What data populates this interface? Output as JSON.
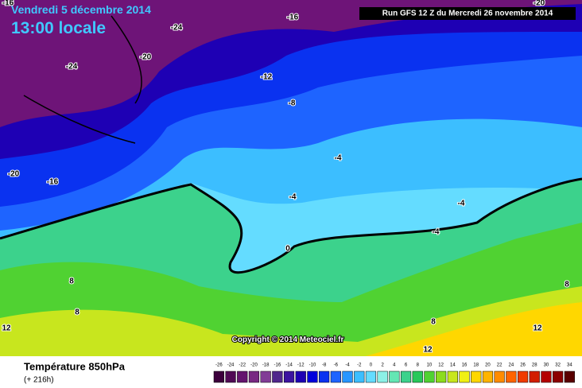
{
  "header": {
    "date": "Vendredi 5 décembre 2014",
    "time": "13:00 locale",
    "run": "Run GFS 12 Z du Mercredi 26 novembre 2014"
  },
  "copyright": "Copyright © 2014 Meteociel.fr",
  "legend": {
    "title": "Température 850hPa",
    "lead": "(+ 216h)",
    "labels": [
      -26,
      -24,
      -22,
      -20,
      -18,
      -16,
      -14,
      -12,
      -10,
      -8,
      -6,
      -4,
      -2,
      0,
      2,
      4,
      6,
      8,
      10,
      12,
      14,
      16,
      18,
      20,
      22,
      24,
      26,
      28,
      30,
      32,
      34
    ],
    "colors": [
      "#3c003c",
      "#500a55",
      "#64146e",
      "#782882",
      "#823c96",
      "#50288c",
      "#3c14a0",
      "#1e00b4",
      "#0000dc",
      "#0a32f0",
      "#1e64ff",
      "#2896ff",
      "#3cbeff",
      "#64dcff",
      "#8cf0e6",
      "#64e6b4",
      "#3cd28c",
      "#28c85a",
      "#50d232",
      "#8cdc1e",
      "#c8e61e",
      "#f0f014",
      "#ffd700",
      "#ffb400",
      "#ff8c00",
      "#ff6400",
      "#f03c00",
      "#d21e00",
      "#b40000",
      "#8c0000",
      "#5a0000"
    ]
  },
  "contour_labels": [
    "-16",
    "-24",
    "-24",
    "-20",
    "-16",
    "-12",
    "-8",
    "-20",
    "-20",
    "-16",
    "-4",
    "-4",
    "-4",
    "-4",
    "0",
    "8",
    "8",
    "12",
    "8",
    "12",
    "8",
    "12"
  ]
}
